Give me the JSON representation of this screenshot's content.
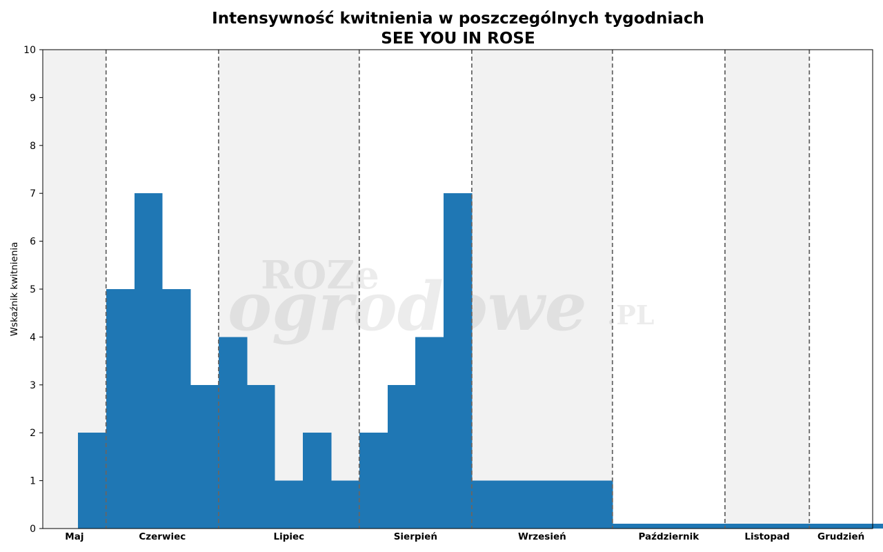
{
  "chart_data": {
    "type": "bar",
    "title": "Intensywność kwitnienia w poszczególnych tygodniach",
    "subtitle": "SEE YOU IN ROSE",
    "ylabel": "Wskaźnik kwitnienia",
    "xlabel": "",
    "ylim": [
      0,
      10
    ],
    "yticks": [
      0,
      1,
      2,
      3,
      4,
      5,
      6,
      7,
      8,
      9,
      10
    ],
    "xlim": [
      0,
      29.5
    ],
    "months": [
      {
        "label": "Maj",
        "start": 0,
        "end": 2.25,
        "shaded": true
      },
      {
        "label": "Czerwiec",
        "start": 2.25,
        "end": 6.25,
        "shaded": false
      },
      {
        "label": "Lipiec",
        "start": 6.25,
        "end": 11.25,
        "shaded": true
      },
      {
        "label": "Sierpień",
        "start": 11.25,
        "end": 15.25,
        "shaded": false
      },
      {
        "label": "Wrzesień",
        "start": 15.25,
        "end": 20.25,
        "shaded": true
      },
      {
        "label": "Październik",
        "start": 20.25,
        "end": 24.25,
        "shaded": false
      },
      {
        "label": "Listopad",
        "start": 24.25,
        "end": 27.25,
        "shaded": true
      },
      {
        "label": "Grudzień",
        "start": 27.25,
        "end": 29.5,
        "shaded": false
      }
    ],
    "week_start": 1.25,
    "week_width": 1,
    "values": [
      2,
      5,
      7,
      5,
      3,
      4,
      3,
      1,
      2,
      1,
      2,
      3,
      4,
      7,
      1,
      1,
      1,
      1,
      1,
      0.1,
      0.1,
      0.1,
      0.1,
      0.1,
      0.1,
      0.1,
      0.1,
      0.1,
      0.1
    ],
    "bar_color": "#1f77b4",
    "shade_color": "#f2f2f2",
    "divider_color": "#666666",
    "grid": false,
    "legend": "none",
    "watermark": {
      "line1": "ROZe",
      "line2": "ogrodowe",
      "line3": ".PL"
    }
  }
}
